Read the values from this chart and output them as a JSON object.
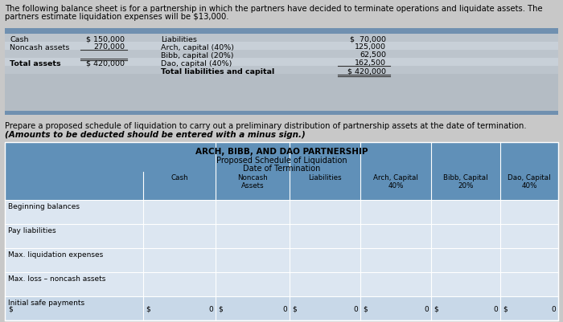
{
  "intro_line1": "The following balance sheet is for a partnership in which the partners have decided to terminate operations and liquidate assets. The",
  "intro_line2": "partners estimate liquidation expenses will be $13,000.",
  "bs_left_items": [
    "Cash",
    "Noncash assets",
    "",
    "Total assets"
  ],
  "bs_left_values": [
    "$ 150,000",
    "270,000",
    "",
    "$ 420,000"
  ],
  "bs_right_items": [
    "Liabilities",
    "Arch, capital (40%)",
    "Bibb, capital (20%)",
    "Dao, capital (40%)",
    "Total liabilities and capital"
  ],
  "bs_right_values": [
    "$  70,000",
    "125,000",
    "62,500",
    "162,500",
    "$ 420,000"
  ],
  "prepare_line1": "Prepare a proposed schedule of liquidation to carry out a preliminary distribution of partnership assets at the date of termination.",
  "prepare_line2": "(Amounts to be deducted should be entered with a minus sign.)",
  "table_title1": "ARCH, BIBB, AND DAO PARTNERSHIP",
  "table_title2": "Proposed Schedule of Liquidation",
  "table_title3": "Date of Termination",
  "col_headers": [
    "Cash",
    "Noncash\nAssets",
    "Liabilities",
    "Arch, Capital\n40%",
    "Bibb, Capital\n20%",
    "Dao, Capital\n40%"
  ],
  "row_labels": [
    "Beginning balances",
    "Pay liabilities",
    "Max. liquidation expenses",
    "Max. loss – noncash assets",
    "Initial safe payments"
  ],
  "bg_page": "#c8c8c8",
  "bg_bs_stripe": "#b0b8c0",
  "bg_bs_header_blue": "#7090b0",
  "bg_table_blue": "#6090b8",
  "bg_row_light": "#dce6f1",
  "bg_row_last": "#c8d8e8",
  "line_color": "#ffffff",
  "text_dark": "#000000"
}
